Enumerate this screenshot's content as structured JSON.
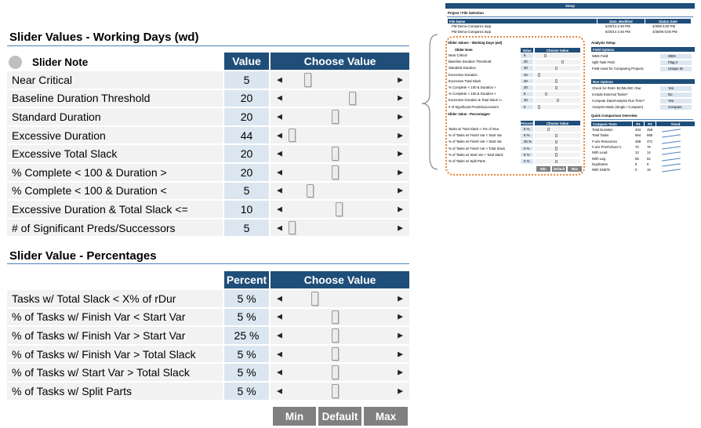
{
  "working_days": {
    "title": "Slider Values - Working Days (wd)",
    "note_label": "Slider Note",
    "value_header": "Value",
    "choose_header": "Choose Value",
    "rows": [
      {
        "label": "Near Critical",
        "value": "5",
        "slider_pos": 0.17
      },
      {
        "label": "Baseline Duration Threshold",
        "value": "20",
        "slider_pos": 0.63
      },
      {
        "label": "Standard Duration",
        "value": "20",
        "slider_pos": 0.45
      },
      {
        "label": "Excessive Duration",
        "value": "44",
        "slider_pos": 0.01
      },
      {
        "label": "Excessive Total Slack",
        "value": "20",
        "slider_pos": 0.45
      },
      {
        "label": "% Complete < 100 & Duration >",
        "value": "20",
        "slider_pos": 0.45
      },
      {
        "label": "% Complete < 100 & Duration <",
        "value": "5",
        "slider_pos": 0.19
      },
      {
        "label": "Excessive Duration & Total Slack <=",
        "value": "10",
        "slider_pos": 0.49
      },
      {
        "label": "# of Significant Preds/Successors",
        "value": "5",
        "slider_pos": 0.01
      }
    ]
  },
  "percentages": {
    "title": "Slider Value - Percentages",
    "percent_header": "Percent",
    "choose_header": "Choose Value",
    "rows": [
      {
        "label": "Tasks w/ Total Slack < X% of rDur",
        "value": "5 %",
        "slider_pos": 0.24
      },
      {
        "label": "% of Tasks w/ Finish Var < Start Var",
        "value": "5 %",
        "slider_pos": 0.45
      },
      {
        "label": "% of Tasks w/  Finish Var > Start Var",
        "value": "25 %",
        "slider_pos": 0.45
      },
      {
        "label": "% of Tasks w/  Finish Var > Total Slack",
        "value": "5 %",
        "slider_pos": 0.45
      },
      {
        "label": "% of Tasks w/  Start Var > Total Slack",
        "value": "5 %",
        "slider_pos": 0.45
      },
      {
        "label": "% of Tasks w/ Split Parts",
        "value": "5 %",
        "slider_pos": 0.45
      }
    ]
  },
  "buttons": {
    "min": "Min",
    "default": "Default",
    "max": "Max"
  },
  "thumbnail": {
    "setup_title": "Setup",
    "project_section": "Project / File Selection",
    "file_headers": [
      "File Name",
      "Date_Modified",
      "Status Date"
    ],
    "files": [
      [
        "PM Demo-Compare1.mpp",
        "6/20/14 2:45 PM",
        "4/3/06 5:00 PM"
      ],
      [
        "PM Demo-Compare2.mpp",
        "6/20/14 2:46 PM",
        "4/30/06 5:00 PM"
      ]
    ],
    "wd_title": "Slider Values - Working Days (wd)",
    "analysis_setup": "Analysis Setup",
    "field_options": "Field Options",
    "field_rows": [
      [
        "WBS Field",
        "WBS"
      ],
      [
        "Split Task Field",
        "Flag 3"
      ],
      [
        "Field Used for Comparing Projects",
        "Unique ID"
      ]
    ],
    "run_options": "Run Options",
    "run_rows": [
      [
        "Check for Risk> BC/ML/WC rDur",
        "Yes"
      ],
      [
        "Include External Tasks?",
        "No"
      ],
      [
        "Compute Data/Analysis Run Time?",
        "Yes"
      ],
      [
        "Analysis Mode (Single / Compare)",
        "Compare"
      ]
    ],
    "pct_title": "Slider Value - Percentages",
    "quick_title": "Quick Comparison Overview",
    "compare_headers": [
      "Compare Tests",
      "P1",
      "P2",
      "Trend"
    ],
    "compare_rows": [
      [
        "Total Duration",
        "334",
        "458"
      ],
      [
        "Total Tasks",
        "594",
        "595"
      ],
      [
        "# w/o Resources",
        "469",
        "471"
      ],
      [
        "# w/o Pred's/Succ's",
        "70",
        "76"
      ],
      [
        "With Lead",
        "12",
        "14"
      ],
      [
        "With Lag",
        "55",
        "62"
      ],
      [
        "Duplicates",
        "6",
        "6"
      ],
      [
        "With SNETs",
        "0",
        "10"
      ]
    ]
  },
  "colors": {
    "header": "#1f4e79",
    "value_cell": "#dce6f1",
    "row": "#f2f2f2",
    "button": "#808080",
    "highlight": "#e8863a"
  }
}
